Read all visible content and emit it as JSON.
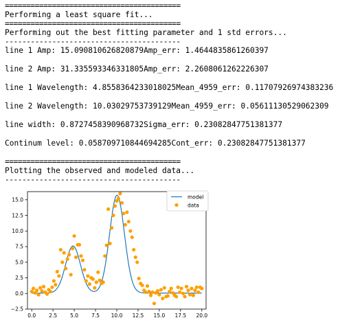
{
  "output": {
    "rule_eq": "=========================================",
    "rule_dash": "-----------------------------------------",
    "msg_fit": "Performing a least square fit...",
    "msg_best": "Performing out the best fitting parameter and 1 std errors...",
    "results": [
      "line 1 Amp: 15.090810626820879Amp_err: 1.4644835861260397",
      "line 2 Amp: 31.335593346331805Amp_err: 2.2608061262226307",
      "line 1 Wavelength: 4.8558364233018025Mean_4959_err: 0.11707926974383236",
      "line 2 Wavelength: 10.03029753739129Mean_4959_err: 0.05611130529062309",
      "line width: 0.8727458390968732Sigma_err: 0.23082847751381377",
      "Continum level: 0.058709710844694285Cont_err: 0.23082847751381377"
    ],
    "msg_plot": "Plotting the observed and modeled data..."
  },
  "colors": {
    "model_line": "#1f77b4",
    "data_points": "#ff9f00",
    "axis": "#000000",
    "background": "#ffffff"
  },
  "chart_data": {
    "type": "scatter",
    "title": "",
    "xlabel": "",
    "ylabel": "",
    "xlim": [
      -0.5,
      20.5
    ],
    "ylim": [
      -2.5,
      16.3
    ],
    "xticks": [
      "0.0",
      "2.5",
      "5.0",
      "7.5",
      "10.0",
      "12.5",
      "15.0",
      "17.5",
      "20.0"
    ],
    "xtick_values": [
      0,
      2.5,
      5,
      7.5,
      10,
      12.5,
      15,
      17.5,
      20
    ],
    "yticks": [
      "−2.5",
      "0.0",
      "2.5",
      "5.0",
      "7.5",
      "10.0",
      "12.5",
      "15.0"
    ],
    "ytick_values": [
      -2.5,
      0,
      2.5,
      5,
      7.5,
      10,
      12.5,
      15
    ],
    "legend_position": "top-right",
    "grid": false,
    "series": [
      {
        "name": "model",
        "kind": "line",
        "model_params": {
          "amp1": 15.090810626820879,
          "mean1": 4.8558364233018025,
          "amp2": 31.335593346331805,
          "mean2": 10.03029753739129,
          "sigma": 0.8727458390968732,
          "continuum": 0.058709710844694285
        }
      },
      {
        "name": "data",
        "kind": "scatter",
        "x": [
          0.0,
          0.2,
          0.4,
          0.6,
          0.8,
          1.0,
          1.2,
          1.4,
          1.6,
          1.8,
          2.0,
          2.2,
          2.4,
          2.6,
          2.8,
          3.0,
          3.2,
          3.4,
          3.6,
          3.8,
          4.0,
          4.2,
          4.4,
          4.6,
          4.8,
          5.0,
          5.2,
          5.4,
          5.6,
          5.8,
          6.0,
          6.2,
          6.4,
          6.6,
          6.8,
          7.0,
          7.2,
          7.4,
          7.6,
          7.8,
          8.0,
          8.2,
          8.4,
          8.6,
          8.8,
          9.0,
          9.2,
          9.4,
          9.6,
          9.8,
          10.0,
          10.2,
          10.4,
          10.6,
          10.8,
          11.0,
          11.2,
          11.4,
          11.6,
          11.8,
          12.0,
          12.2,
          12.4,
          12.6,
          12.8,
          13.0,
          13.2,
          13.4,
          13.6,
          13.8,
          14.0,
          14.2,
          14.4,
          14.6,
          14.8,
          15.0,
          15.2,
          15.4,
          15.6,
          15.8,
          16.0,
          16.2,
          16.4,
          16.6,
          16.8,
          17.0,
          17.2,
          17.4,
          17.6,
          17.8,
          18.0,
          18.2,
          18.4,
          18.6,
          18.8,
          19.0,
          19.2,
          19.4,
          19.6,
          19.8,
          20.0
        ],
        "y": [
          0.3,
          0.8,
          0.1,
          0.5,
          -0.2,
          0.9,
          0.4,
          1.1,
          0.2,
          -0.1,
          0.6,
          0.3,
          1.0,
          2.0,
          1.4,
          3.5,
          2.8,
          7.0,
          5.0,
          6.5,
          4.0,
          5.5,
          6.2,
          3.0,
          7.2,
          9.2,
          5.8,
          7.8,
          7.8,
          6.0,
          5.3,
          3.8,
          2.0,
          2.8,
          1.5,
          2.5,
          2.3,
          0.9,
          1.8,
          3.4,
          2.1,
          1.6,
          1.8,
          6.0,
          7.7,
          13.5,
          8.0,
          10.5,
          12.5,
          14.0,
          14.8,
          15.2,
          16.0,
          14.5,
          12.8,
          11.0,
          13.0,
          11.5,
          10.0,
          9.0,
          7.0,
          5.8,
          5.0,
          2.4,
          1.6,
          1.3,
          0.5,
          0.2,
          1.2,
          0.3,
          -0.3,
          0.2,
          -1.6,
          0.1,
          0.4,
          -0.2,
          0.6,
          -0.8,
          0.9,
          -0.5,
          -0.4,
          0.3,
          0.8,
          0.1,
          -0.3,
          -0.5,
          1.0,
          0.2,
          0.8,
          0.0,
          -0.5,
          1.1,
          0.5,
          -0.2,
          0.8,
          -0.3,
          0.5,
          1.0,
          0.2,
          1.0,
          0.8
        ]
      }
    ]
  }
}
